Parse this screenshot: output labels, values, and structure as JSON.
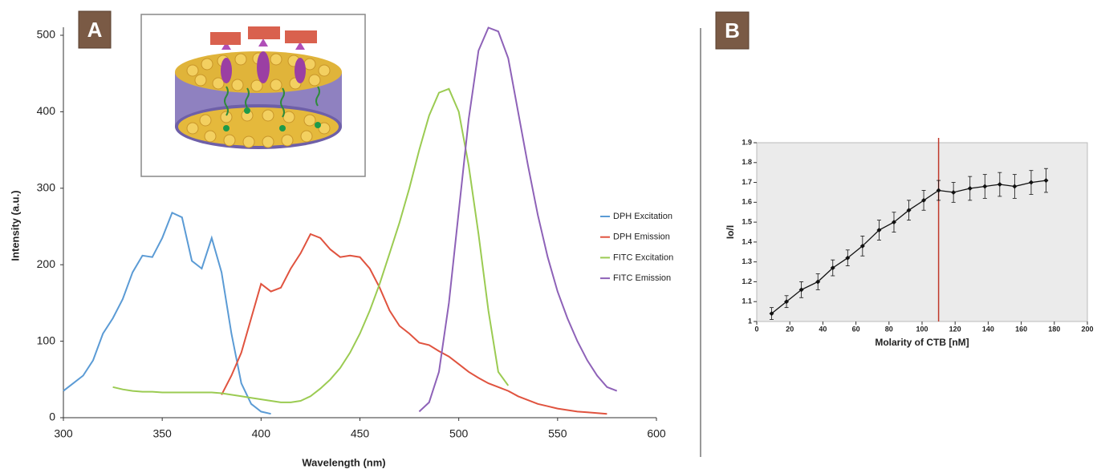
{
  "chart_data": [
    {
      "type": "line",
      "panel_label": "A",
      "x_label": "Wavelength (nm)",
      "y_label": "Intensity (a.u.)",
      "xlim": [
        300,
        600
      ],
      "xticks": [
        300,
        350,
        400,
        450,
        500,
        550,
        600
      ],
      "ylim": [
        0,
        500
      ],
      "yticks": [
        0,
        100,
        200,
        300,
        400,
        500
      ],
      "legend": "right",
      "x": [
        300,
        305,
        310,
        315,
        320,
        325,
        330,
        335,
        340,
        345,
        350,
        355,
        360,
        365,
        370,
        375,
        380,
        385,
        390,
        395,
        400,
        405,
        410,
        415,
        420,
        425,
        430,
        435,
        440,
        445,
        450,
        455,
        460,
        465,
        470,
        475,
        480,
        485,
        490,
        495,
        500,
        505,
        510,
        515,
        520,
        525,
        530,
        535,
        540,
        545,
        550,
        555,
        560,
        565,
        570,
        575,
        580
      ],
      "series": [
        {
          "name": "DPH Excitation",
          "color": "#5b9bd5",
          "values": [
            35,
            45,
            55,
            75,
            110,
            130,
            155,
            190,
            212,
            210,
            235,
            268,
            262,
            205,
            195,
            235,
            190,
            110,
            45,
            18,
            8,
            5,
            null,
            null,
            null,
            null,
            null,
            null,
            null,
            null,
            null,
            null,
            null,
            null,
            null,
            null,
            null,
            null,
            null,
            null,
            null,
            null,
            null,
            null,
            null,
            null,
            null,
            null,
            null,
            null,
            null,
            null,
            null,
            null,
            null,
            null,
            null
          ]
        },
        {
          "name": "DPH Emission",
          "color": "#e0533f",
          "values": [
            null,
            null,
            null,
            null,
            null,
            null,
            null,
            null,
            null,
            null,
            null,
            null,
            null,
            null,
            null,
            null,
            30,
            55,
            85,
            130,
            175,
            165,
            170,
            195,
            215,
            240,
            235,
            220,
            210,
            212,
            210,
            195,
            170,
            140,
            120,
            110,
            98,
            95,
            87,
            80,
            70,
            60,
            52,
            45,
            40,
            35,
            28,
            23,
            18,
            15,
            12,
            10,
            8,
            7,
            6,
            5,
            null
          ]
        },
        {
          "name": "FITC Excitation",
          "color": "#9bcb52",
          "values": [
            null,
            null,
            null,
            null,
            null,
            40,
            37,
            35,
            34,
            34,
            33,
            33,
            33,
            33,
            33,
            33,
            32,
            30,
            28,
            26,
            24,
            22,
            20,
            20,
            22,
            28,
            38,
            50,
            65,
            85,
            110,
            140,
            175,
            215,
            255,
            300,
            350,
            395,
            425,
            430,
            400,
            330,
            240,
            140,
            60,
            42,
            null,
            null,
            null,
            null,
            null,
            null,
            null,
            null,
            null,
            null,
            null
          ]
        },
        {
          "name": "FITC Emission",
          "color": "#8e62b8",
          "values": [
            null,
            null,
            null,
            null,
            null,
            null,
            null,
            null,
            null,
            null,
            null,
            null,
            null,
            null,
            null,
            null,
            null,
            null,
            null,
            null,
            null,
            null,
            null,
            null,
            null,
            null,
            null,
            null,
            null,
            null,
            null,
            null,
            null,
            null,
            null,
            null,
            8,
            20,
            60,
            150,
            270,
            390,
            480,
            510,
            505,
            470,
            400,
            330,
            265,
            210,
            165,
            130,
            100,
            75,
            55,
            40,
            35
          ]
        }
      ]
    },
    {
      "type": "line",
      "panel_label": "B",
      "x_label": "Molarity of CTB [nM]",
      "y_label": "Io/I",
      "xlim": [
        0,
        200
      ],
      "xticks": [
        0,
        20,
        40,
        60,
        80,
        100,
        120,
        140,
        160,
        180,
        200
      ],
      "ylim": [
        1,
        1.9
      ],
      "yticks": [
        1,
        1.1,
        1.2,
        1.3,
        1.4,
        1.5,
        1.6,
        1.7,
        1.8,
        1.9
      ],
      "background": "#ebebeb",
      "color": "#111111",
      "x": [
        9,
        18,
        27,
        37,
        46,
        55,
        64,
        74,
        83,
        92,
        101,
        110,
        119,
        129,
        138,
        147,
        156,
        166,
        175
      ],
      "values": [
        1.04,
        1.1,
        1.16,
        1.2,
        1.27,
        1.32,
        1.38,
        1.46,
        1.5,
        1.56,
        1.61,
        1.66,
        1.65,
        1.67,
        1.68,
        1.69,
        1.68,
        1.7,
        1.71
      ],
      "errors": [
        0.03,
        0.03,
        0.04,
        0.04,
        0.04,
        0.04,
        0.05,
        0.05,
        0.05,
        0.05,
        0.05,
        0.05,
        0.05,
        0.06,
        0.06,
        0.06,
        0.06,
        0.06,
        0.06
      ],
      "vline": {
        "x": 110,
        "color": "#c0392b"
      }
    }
  ]
}
